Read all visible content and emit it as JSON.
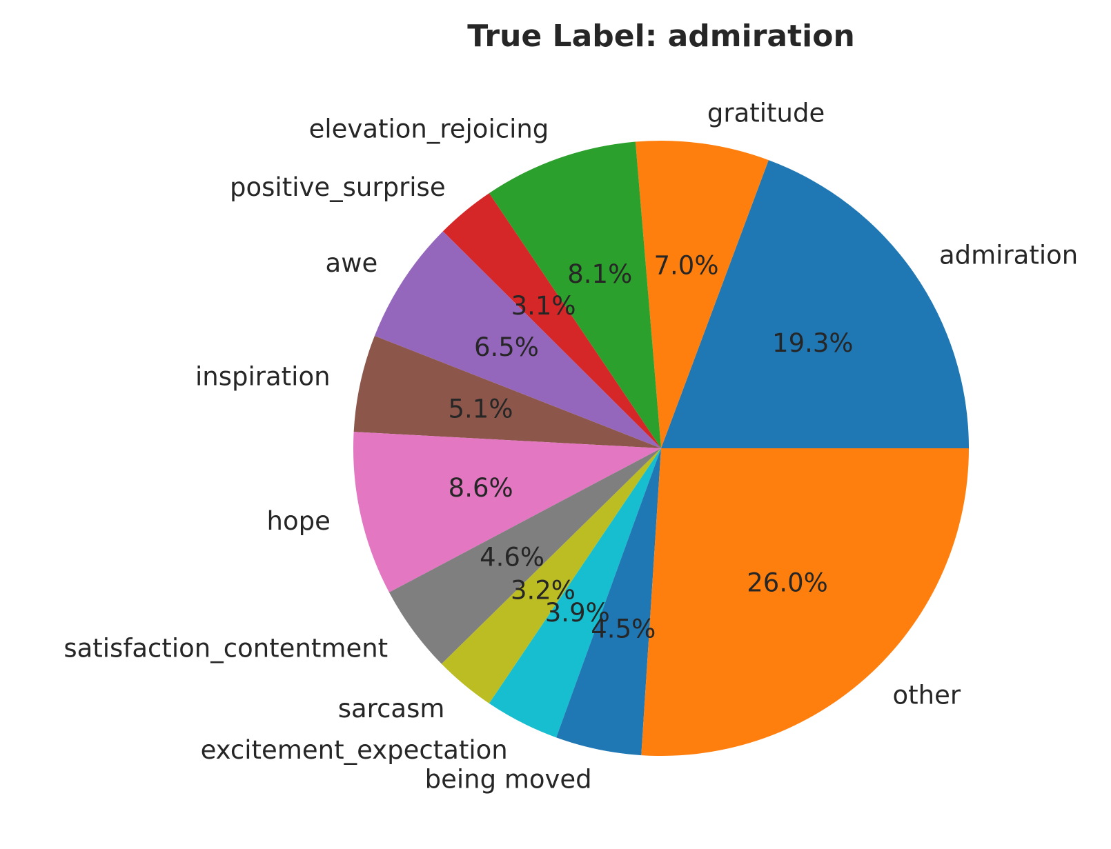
{
  "chart_data": {
    "type": "pie",
    "title": "True Label: admiration",
    "categories": [
      "admiration",
      "gratitude",
      "elevation_rejoicing",
      "positive_surprise",
      "awe",
      "inspiration",
      "hope",
      "satisfaction_contentment",
      "sarcasm",
      "excitement_expectation",
      "being moved",
      "other"
    ],
    "values": [
      19.3,
      7.0,
      8.1,
      3.1,
      6.5,
      5.1,
      8.6,
      4.6,
      3.2,
      3.9,
      4.5,
      26.0
    ],
    "value_labels": [
      "19.3%",
      "7.0%",
      "8.1%",
      "3.1%",
      "6.5%",
      "5.1%",
      "8.6%",
      "4.6%",
      "3.2%",
      "3.9%",
      "4.5%",
      "26.0%"
    ],
    "colors": [
      "#1f77b4",
      "#ff7f0e",
      "#2ca02c",
      "#d62728",
      "#9467bd",
      "#8c564b",
      "#e377c2",
      "#7f7f7f",
      "#bcbd22",
      "#17becf",
      "#1f77b4",
      "#ff7f0e"
    ],
    "start_angle": 0,
    "direction": "counterclockwise",
    "legend": "none"
  }
}
